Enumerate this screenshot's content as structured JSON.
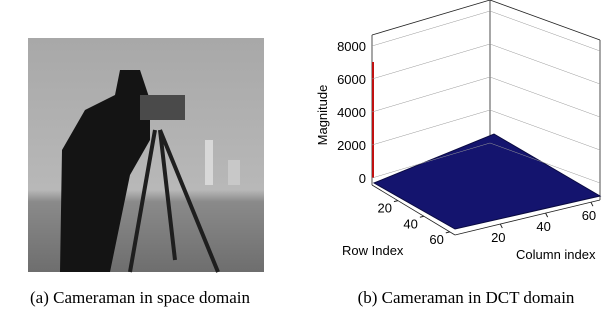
{
  "subfigures": {
    "a": {
      "caption": "(a)  Cameraman in space domain"
    },
    "b": {
      "caption": "(b)  Cameraman in DCT domain"
    }
  },
  "chart_data": {
    "type": "surface",
    "zlabel": "Magnitude",
    "xlabel": "Row Index",
    "ylabel": "Column index",
    "zlim": [
      0,
      8000
    ],
    "zticks": [
      0,
      2000,
      4000,
      6000,
      8000
    ],
    "xlim": [
      0,
      64
    ],
    "xticks": [
      20,
      40,
      60
    ],
    "ylim": [
      0,
      64
    ],
    "yticks": [
      20,
      40,
      60
    ],
    "color": "#14146e",
    "grid": true
  }
}
